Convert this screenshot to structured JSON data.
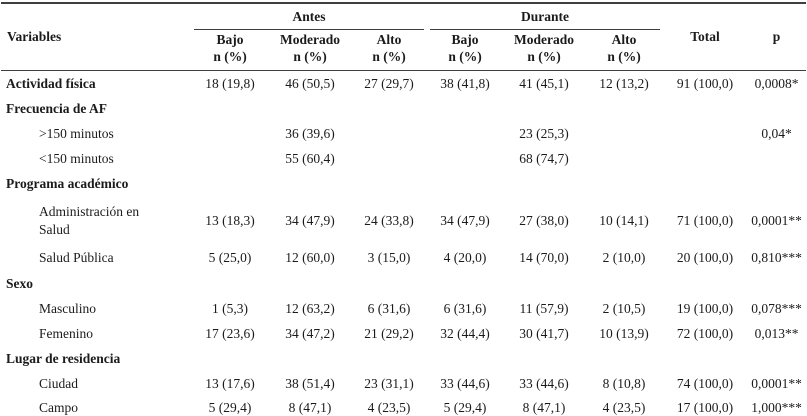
{
  "table": {
    "header": {
      "variables_label": "Variables",
      "group_antes": "Antes",
      "group_durante": "Durante",
      "sub_columns": [
        "Bajo",
        "Moderado",
        "Alto",
        "Bajo",
        "Moderado",
        "Alto"
      ],
      "sub_unit": "n (%)",
      "total_label": "Total",
      "p_label": "p"
    },
    "rows": [
      {
        "label": "Actividad física",
        "type": "group-data",
        "cells": [
          "18 (19,8)",
          "46 (50,5)",
          "27 (29,7)",
          "38 (41,8)",
          "41 (45,1)",
          "12 (13,2)",
          "91 (100,0)",
          "0,0008*"
        ]
      },
      {
        "label": "Frecuencia de AF",
        "type": "group",
        "cells": [
          "",
          "",
          "",
          "",
          "",
          "",
          "",
          ""
        ]
      },
      {
        "label": ">150 minutos",
        "type": "sub",
        "cells": [
          "",
          "36 (39,6)",
          "",
          "",
          "23 (25,3)",
          "",
          "",
          "0,04*"
        ]
      },
      {
        "label": "<150 minutos",
        "type": "sub",
        "cells": [
          "",
          "55 (60,4)",
          "",
          "",
          "68 (74,7)",
          "",
          "",
          ""
        ]
      },
      {
        "label": "Programa académico",
        "type": "group",
        "cells": [
          "",
          "",
          "",
          "",
          "",
          "",
          "",
          ""
        ]
      },
      {
        "label": "Administración en Salud",
        "type": "sub-tall",
        "cells": [
          "13 (18,3)",
          "34 (47,9)",
          "24 (33,8)",
          "34 (47,9)",
          "27 (38,0)",
          "10 (14,1)",
          "71 (100,0)",
          "0,0001**"
        ]
      },
      {
        "label": "Salud Pública",
        "type": "sub",
        "cells": [
          "5 (25,0)",
          "12 (60,0)",
          "3 (15,0)",
          "4 (20,0)",
          "14 (70,0)",
          "2 (10,0)",
          "20 (100,0)",
          "0,810***"
        ]
      },
      {
        "label": "Sexo",
        "type": "group",
        "cells": [
          "",
          "",
          "",
          "",
          "",
          "",
          "",
          ""
        ]
      },
      {
        "label": "Masculino",
        "type": "sub",
        "cells": [
          "1 (5,3)",
          "12 (63,2)",
          "6 (31,6)",
          "6 (31,6)",
          "11 (57,9)",
          "2 (10,5)",
          "19 (100,0)",
          "0,078***"
        ]
      },
      {
        "label": "Femenino",
        "type": "sub",
        "cells": [
          "17 (23,6)",
          "34 (47,2)",
          "21 (29,2)",
          "32 (44,4)",
          "30 (41,7)",
          "10 (13,9)",
          "72 (100,0)",
          "0,013**"
        ]
      },
      {
        "label": "Lugar de residencia",
        "type": "group",
        "cells": [
          "",
          "",
          "",
          "",
          "",
          "",
          "",
          ""
        ]
      },
      {
        "label": "Ciudad",
        "type": "sub",
        "cells": [
          "13 (17,6)",
          "38 (51,4)",
          "23 (31,1)",
          "33 (44,6)",
          "33 (44,6)",
          "8 (10,8)",
          "74 (100,0)",
          "0,0001**"
        ]
      },
      {
        "label": "Campo",
        "type": "sub",
        "cells": [
          "5 (29,4)",
          "8 (47,1)",
          "4 (23,5)",
          "5 (29,4)",
          "8 (47,1)",
          "4 (23,5)",
          "17 (100,0)",
          "1,000***"
        ]
      }
    ]
  }
}
